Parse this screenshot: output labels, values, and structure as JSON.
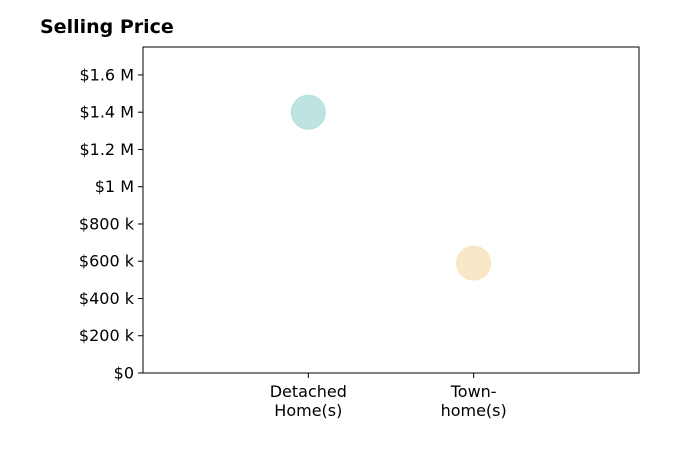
{
  "chart_data": {
    "type": "scatter",
    "title": "Selling Price",
    "xlabel": "",
    "ylabel": "",
    "categories": [
      [
        "Detached",
        "Home(s)"
      ],
      [
        "Town-",
        "home(s)"
      ]
    ],
    "points": [
      {
        "category_index": 0,
        "value": 1400000,
        "color": "#b2dfdb"
      },
      {
        "category_index": 1,
        "value": 590000,
        "color": "#f8e4be"
      }
    ],
    "ylim": [
      0,
      1750000
    ],
    "yticks": [
      0,
      200000,
      400000,
      600000,
      800000,
      1000000,
      1200000,
      1400000,
      1600000
    ],
    "ytick_labels": [
      "$0",
      "$200 k",
      "$400 k",
      "$600 k",
      "$800 k",
      "$1 M",
      "$1.2 M",
      "$1.4 M",
      "$1.6 M"
    ],
    "xlim": [
      -1,
      2
    ],
    "grid": false,
    "legend": "none"
  }
}
